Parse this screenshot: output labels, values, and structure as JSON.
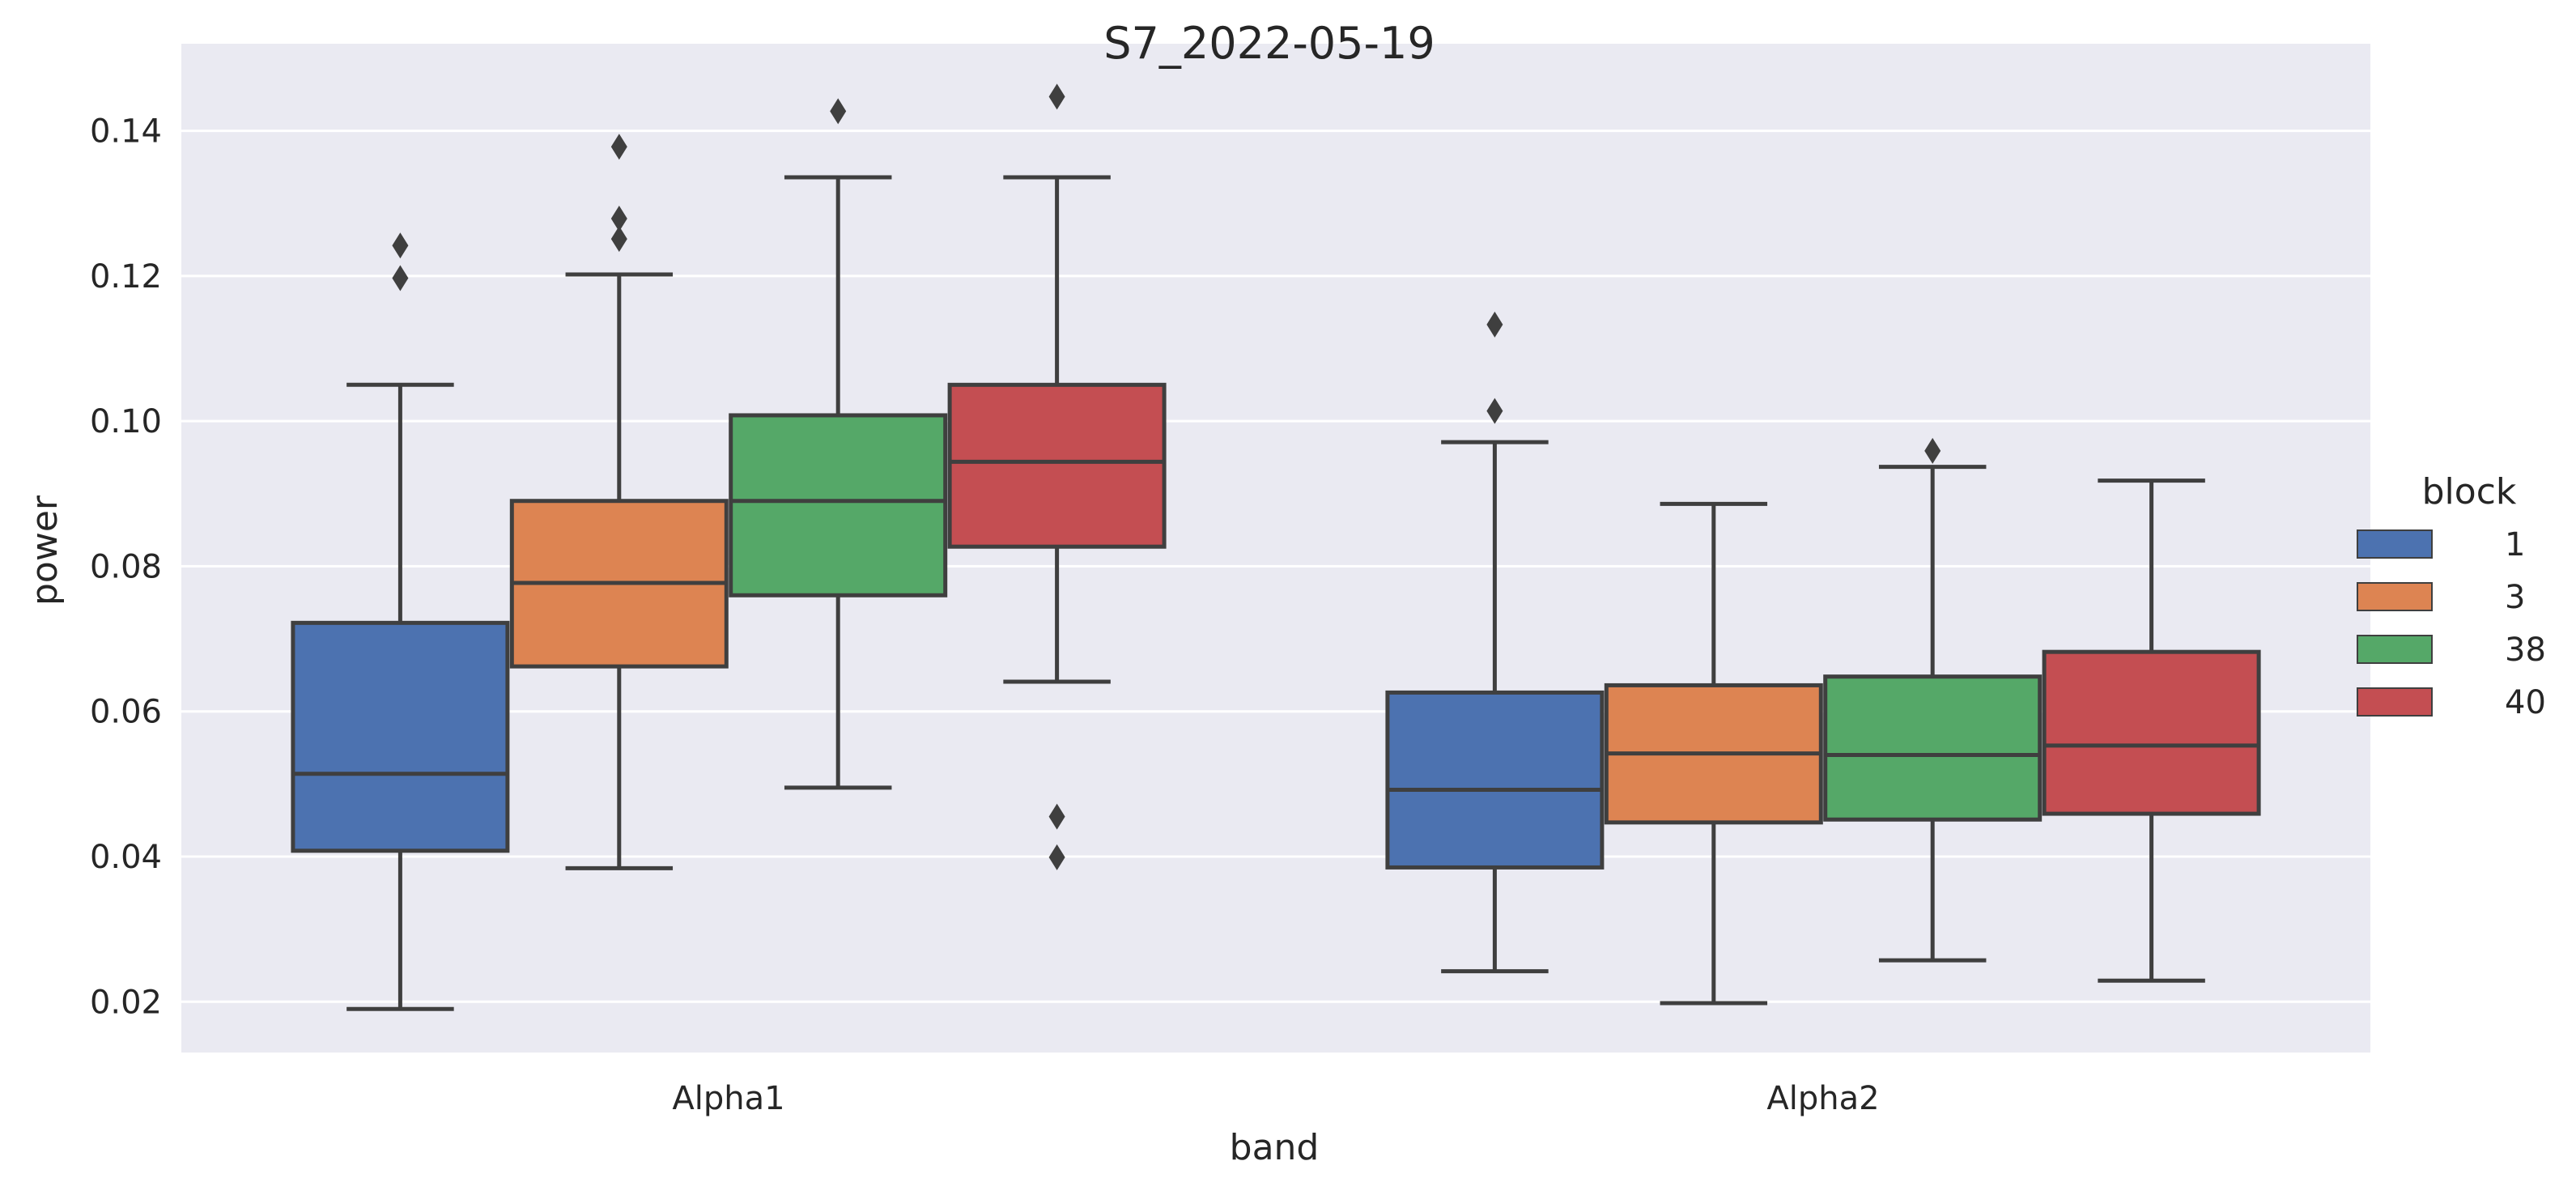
{
  "chart_data": {
    "type": "box",
    "title": "S7_2022-05-19",
    "xlabel": "band",
    "ylabel": "power",
    "categories": [
      "Alpha1",
      "Alpha2"
    ],
    "ylim": [
      0.013,
      0.152
    ],
    "yticks": [
      "0.02",
      "0.04",
      "0.06",
      "0.08",
      "0.10",
      "0.12",
      "0.14"
    ],
    "grid": true,
    "legend": {
      "title": "block",
      "placement": "right"
    },
    "series": [
      {
        "name": "1",
        "color": "#4c72b0",
        "boxes": [
          {
            "category": "Alpha1",
            "whisker_low": 0.019,
            "q1": 0.0408,
            "median": 0.0514,
            "q3": 0.0722,
            "whisker_high": 0.105,
            "outliers": [
              0.1197,
              0.1242
            ]
          },
          {
            "category": "Alpha2",
            "whisker_low": 0.0242,
            "q1": 0.0385,
            "median": 0.0492,
            "q3": 0.0626,
            "whisker_high": 0.0971,
            "outliers": [
              0.1014,
              0.1133
            ]
          }
        ]
      },
      {
        "name": "3",
        "color": "#dd8452",
        "boxes": [
          {
            "category": "Alpha1",
            "whisker_low": 0.0384,
            "q1": 0.0662,
            "median": 0.0777,
            "q3": 0.089,
            "whisker_high": 0.1202,
            "outliers": [
              0.1251,
              0.1279,
              0.1378
            ]
          },
          {
            "category": "Alpha2",
            "whisker_low": 0.0198,
            "q1": 0.0447,
            "median": 0.0542,
            "q3": 0.0636,
            "whisker_high": 0.0886,
            "outliers": []
          }
        ]
      },
      {
        "name": "38",
        "color": "#55a868",
        "boxes": [
          {
            "category": "Alpha1",
            "whisker_low": 0.0495,
            "q1": 0.076,
            "median": 0.089,
            "q3": 0.1008,
            "whisker_high": 0.1336,
            "outliers": [
              0.1427
            ]
          },
          {
            "category": "Alpha2",
            "whisker_low": 0.0257,
            "q1": 0.0451,
            "median": 0.054,
            "q3": 0.0648,
            "whisker_high": 0.0937,
            "outliers": [
              0.0959
            ]
          }
        ]
      },
      {
        "name": "40",
        "color": "#c44e52",
        "boxes": [
          {
            "category": "Alpha1",
            "whisker_low": 0.0641,
            "q1": 0.0827,
            "median": 0.0944,
            "q3": 0.105,
            "whisker_high": 0.1336,
            "outliers": [
              0.0399,
              0.0455,
              0.1447
            ]
          },
          {
            "category": "Alpha2",
            "whisker_low": 0.0229,
            "q1": 0.0459,
            "median": 0.0553,
            "q3": 0.0682,
            "whisker_high": 0.0918,
            "outliers": []
          }
        ]
      }
    ]
  }
}
